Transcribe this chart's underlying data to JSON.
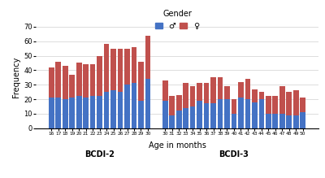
{
  "ages_bcdi2": [
    16,
    17,
    18,
    19,
    20,
    21,
    22,
    23,
    24,
    25,
    26,
    27,
    28,
    29,
    30
  ],
  "ages_bcdi3": [
    30,
    31,
    32,
    33,
    34,
    35,
    36,
    37,
    38,
    39,
    40,
    41,
    42,
    43,
    44,
    45,
    46,
    47,
    48,
    49,
    50
  ],
  "male_bcdi2": [
    21,
    21,
    20,
    21,
    22,
    21,
    22,
    22,
    25,
    26,
    25,
    30,
    31,
    19,
    34
  ],
  "female_bcdi2": [
    21,
    25,
    23,
    16,
    23,
    23,
    22,
    28,
    33,
    29,
    30,
    25,
    25,
    27,
    30
  ],
  "male_bcdi3": [
    19,
    9,
    12,
    14,
    15,
    19,
    17,
    17,
    20,
    20,
    10,
    21,
    20,
    18,
    20,
    10,
    10,
    10,
    9,
    9,
    11
  ],
  "female_bcdi3": [
    14,
    13,
    11,
    17,
    14,
    12,
    14,
    18,
    15,
    9,
    10,
    11,
    14,
    9,
    5,
    12,
    12,
    19,
    16,
    17,
    10
  ],
  "color_male": "#4472c4",
  "color_female": "#c0504d",
  "ylabel": "Frequency",
  "xlabel": "Age in months",
  "label_bcdi2": "BCDI-2",
  "label_bcdi3": "BCDI-3",
  "legend_title": "Gender",
  "legend_male": "♂",
  "legend_female": "♀",
  "ylim": [
    0,
    70
  ],
  "yticks": [
    0,
    10,
    20,
    30,
    40,
    50,
    60,
    70
  ],
  "bar_width": 0.8
}
